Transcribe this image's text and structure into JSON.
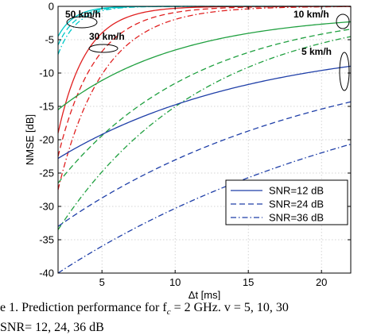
{
  "chart_data": {
    "type": "line",
    "xlabel": "Δt [ms]",
    "ylabel": "NMSE [dB]",
    "xlim": [
      2,
      22
    ],
    "ylim": [
      -40,
      0
    ],
    "xticks": [
      5,
      10,
      15,
      20
    ],
    "yticks": [
      0,
      -5,
      -10,
      -15,
      -20,
      -25,
      -30,
      -35,
      -40
    ],
    "grid": true,
    "legend_position": "bottom-right",
    "legend": [
      {
        "label": "SNR=12 dB",
        "style": "solid"
      },
      {
        "label": "SNR=24 dB",
        "style": "dashed"
      },
      {
        "label": "SNR=36 dB",
        "style": "dashdot"
      }
    ],
    "annotations": [
      "50 km/h",
      "30 km/h",
      "10 km/h",
      "5 km/h"
    ],
    "series": [
      {
        "speed": "50 km/h",
        "snr": "12 dB",
        "color": "#00c8c8",
        "style": "solid",
        "start": -4.5,
        "end": 0,
        "k": 0.9
      },
      {
        "speed": "50 km/h",
        "snr": "24 dB",
        "color": "#00c8c8",
        "style": "dashed",
        "start": -5.8,
        "end": 0,
        "k": 0.85
      },
      {
        "speed": "50 km/h",
        "snr": "36 dB",
        "color": "#00c8c8",
        "style": "dashdot",
        "start": -7.2,
        "end": 0,
        "k": 0.8
      },
      {
        "speed": "30 km/h",
        "snr": "12 dB",
        "color": "#e02020",
        "style": "solid",
        "start": -19,
        "end": 0,
        "k": 0.52
      },
      {
        "speed": "30 km/h",
        "snr": "24 dB",
        "color": "#e02020",
        "style": "dashed",
        "start": -22.5,
        "end": 0,
        "k": 0.4
      },
      {
        "speed": "30 km/h",
        "snr": "36 dB",
        "color": "#e02020",
        "style": "dashdot",
        "start": -27.5,
        "end": 0,
        "k": 0.33
      },
      {
        "speed": "10 km/h",
        "snr": "12 dB",
        "color": "#20a040",
        "style": "solid",
        "start": -15.5,
        "end": -1,
        "k": 0.12
      },
      {
        "speed": "10 km/h",
        "snr": "24 dB",
        "color": "#20a040",
        "style": "dashed",
        "start": -26.5,
        "end": -0.2,
        "k": 0.105
      },
      {
        "speed": "10 km/h",
        "snr": "36 dB",
        "color": "#20a040",
        "style": "dashdot",
        "start": -33.5,
        "end": 0,
        "k": 0.1
      },
      {
        "speed": "5 km/h",
        "snr": "12 dB",
        "color": "#1f3fa8",
        "style": "solid",
        "start": -22.8,
        "end": -5,
        "k": 0.075
      },
      {
        "speed": "5 km/h",
        "snr": "24 dB",
        "color": "#1f3fa8",
        "style": "dashed",
        "start": -33,
        "end": -5,
        "k": 0.055
      },
      {
        "speed": "5 km/h",
        "snr": "36 dB",
        "color": "#1f3fa8",
        "style": "dashdot",
        "start": -40,
        "end": -6,
        "k": 0.042
      }
    ]
  },
  "caption": {
    "line1": "e 1.   Prediction performance for f",
    "line1_sub": "c",
    "line1_rest": " = 2 GHz. v = 5, 10, 30",
    "line2": "SNR= 12, 24, 36 dB"
  }
}
